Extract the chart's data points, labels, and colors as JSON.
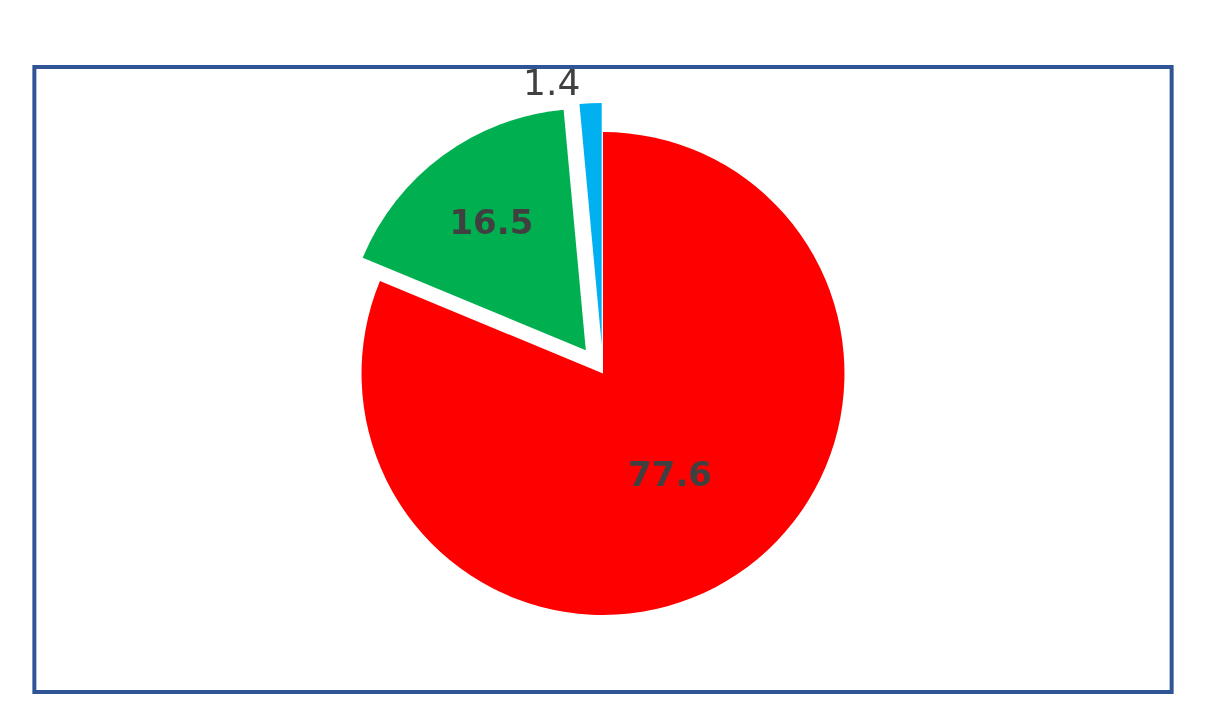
{
  "chart_data": {
    "type": "pie",
    "categories": [
      null,
      null,
      null
    ],
    "values": [
      77.6,
      16.5,
      1.4
    ],
    "colors": [
      "#ff0000",
      "#00b050",
      "#00b0f0"
    ],
    "data_labels": true,
    "legend": false
  }
}
